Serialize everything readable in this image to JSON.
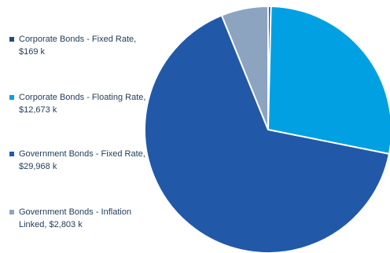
{
  "chart_data": {
    "type": "pie",
    "title": "",
    "slices": [
      {
        "label": "Corporate Bonds - Fixed Rate, $169 k",
        "name": "Corporate Bonds - Fixed Rate",
        "value": 169,
        "color": "#1f4e79"
      },
      {
        "label": "Corporate Bonds - Floating Rate, $12,673 k",
        "name": "Corporate Bonds - Floating Rate",
        "value": 12673,
        "color": "#00a0e3"
      },
      {
        "label": "Government Bonds - Fixed Rate, $29,968 k",
        "name": "Government Bonds - Fixed Rate",
        "value": 29968,
        "color": "#2159a8"
      },
      {
        "label": "Government Bonds - Inflation Linked, $2,803 k",
        "name": "Government Bonds - Inflation Linked",
        "value": 2803,
        "color": "#8ca4bf"
      }
    ],
    "start_angle": "12 o'clock",
    "direction": "clockwise",
    "legend_position": "left"
  }
}
